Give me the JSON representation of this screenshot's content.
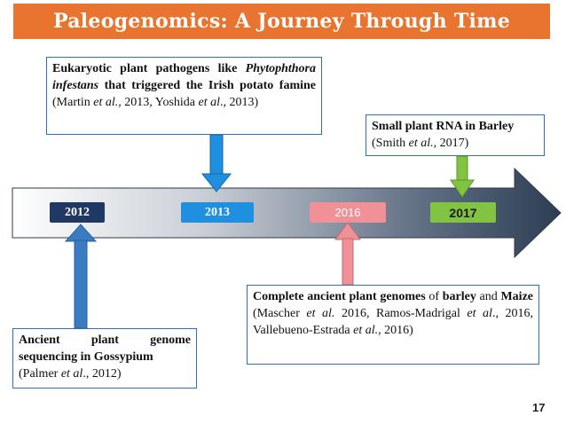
{
  "title": "Paleogenomics: A Journey Through Time",
  "years": [
    "2012",
    "2013",
    "2016",
    "2017"
  ],
  "events": {
    "e2013": {
      "part1": "Eukaryotic plant pathogens like",
      "part2": "Phytophthora infestans",
      "part3": " that triggered the Irish potato famine",
      "part4": " (Martin ",
      "part5": "et al.,",
      "part6": " 2013, Yoshida ",
      "part7": "et al",
      "part8": "., 2013)"
    },
    "e2017": {
      "part1": "Small plant RNA in Barley",
      "part2": "(Smith ",
      "part3": "et al.,",
      "part4": " 2017)"
    },
    "e2016": {
      "part1": "Complete ancient plant genomes",
      "part2": " of ",
      "part3": "barley",
      "part4": " and ",
      "part5": "Maize",
      "part6": " (Mascher ",
      "part7": "et al.",
      "part8": " 2016, Ramos-Madrigal ",
      "part9": "et al",
      "part10": "., 2016, Vallebueno-Estrada ",
      "part11": "et al.,",
      "part12": " 2016)"
    },
    "e2012": {
      "part1": "Ancient plant genome sequencing in Gossypium",
      "part2": "(Palmer ",
      "part3": "et al",
      "part4": "., 2012)"
    }
  },
  "page_number": "17",
  "colors": {
    "title_bg": "#e8742f",
    "y2012": "#203864",
    "y2013": "#1f8fe0",
    "y2016": "#f09097",
    "y2017": "#82c341",
    "box_border": "#2f6fb5"
  }
}
